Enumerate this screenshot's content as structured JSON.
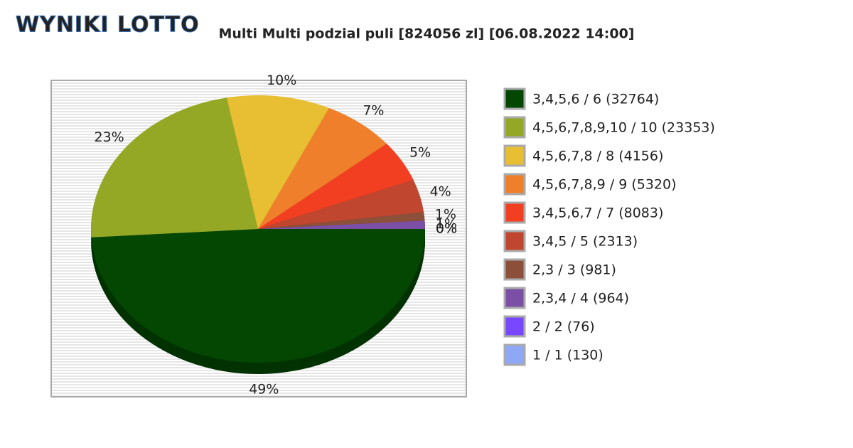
{
  "logo": "WYNIKI LOTTO",
  "chart_data": {
    "type": "pie",
    "title": "Multi Multi podzial puli [824056 zl] [06.08.2022 14:00]",
    "categories": [
      "3,4,5,6 / 6 (32764)",
      "4,5,6,7,8,9,10 / 10 (23353)",
      "4,5,6,7,8 / 8 (4156)",
      "4,5,6,7,8,9 / 9 (5320)",
      "3,4,5,6,7 / 7 (8083)",
      "3,4,5 / 5 (2313)",
      "2,3 / 3 (981)",
      "2,3,4 / 4 (964)",
      "2 / 2 (76)",
      "1 / 1 (130)"
    ],
    "values": [
      49,
      23,
      10,
      7,
      5,
      4,
      1,
      1,
      0,
      0
    ],
    "value_labels": [
      "49%",
      "23%",
      "10%",
      "7%",
      "5%",
      "4%",
      "1%",
      "1%",
      "0%",
      "0%"
    ],
    "colors": [
      "#034703",
      "#95a825",
      "#e8be33",
      "#ef7f2a",
      "#f23f22",
      "#c0462f",
      "#8b4f3a",
      "#7c4fa6",
      "#7748ff",
      "#8fa8f5"
    ]
  }
}
